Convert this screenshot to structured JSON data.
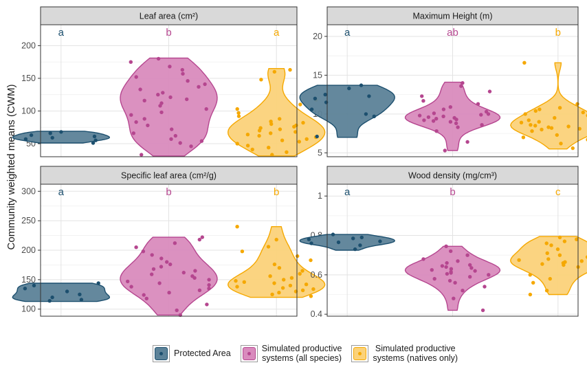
{
  "figure": {
    "ylabel": "Community weighted means (CWM)"
  },
  "legend": [
    {
      "label": "Protected Area",
      "color": "#1c4f6e",
      "fill": "#5c8298"
    },
    {
      "label": "Simulated productive\nsystems (all species)",
      "color": "#b5468f",
      "fill": "#d98bbd"
    },
    {
      "label": "Simulated productive\nsystems (natives only)",
      "color": "#f5a800",
      "fill": "#fbd27a"
    }
  ],
  "chart_data": [
    {
      "type": "violin",
      "title": "Leaf area (cm²)",
      "ylim": [
        30,
        232
      ],
      "yticks": [
        50,
        100,
        150,
        200
      ],
      "groups": [
        {
          "letter": "a",
          "min": 51,
          "max": 69,
          "points": [
            51,
            55,
            57,
            59,
            61,
            63,
            66,
            68
          ]
        },
        {
          "letter": "b",
          "min": 31,
          "max": 181,
          "points": [
            33,
            46,
            51,
            54,
            57,
            62,
            66,
            72,
            78,
            83,
            88,
            94,
            98,
            103,
            108,
            112,
            116,
            118,
            121,
            125,
            128,
            133,
            137,
            141,
            146,
            152,
            157,
            163,
            168,
            175,
            180
          ]
        },
        {
          "letter": "a",
          "min": 31,
          "max": 165,
          "points": [
            33,
            37,
            41,
            44,
            47,
            50,
            53,
            55,
            57,
            60,
            62,
            64,
            66,
            68,
            70,
            72,
            74,
            76,
            78,
            80,
            82,
            84,
            88,
            92,
            97,
            103,
            110,
            117,
            148,
            160,
            163
          ]
        }
      ]
    },
    {
      "type": "violin",
      "title": "Maximum Height (m)",
      "ylim": [
        4.5,
        21.5
      ],
      "yticks": [
        5,
        10,
        15,
        20
      ],
      "groups": [
        {
          "letter": "a",
          "min": 7.0,
          "max": 13.7,
          "points": [
            7.1,
            9.7,
            10.0,
            10.6,
            11.5,
            12.0,
            12.3,
            12.5,
            13.3,
            13.7
          ]
        },
        {
          "letter": "ab",
          "min": 5.3,
          "max": 14.1,
          "points": [
            5.3,
            6.4,
            7.8,
            8.3,
            8.6,
            8.8,
            9.0,
            9.1,
            9.2,
            9.3,
            9.4,
            9.5,
            9.6,
            9.7,
            9.8,
            9.9,
            10.0,
            10.1,
            10.3,
            10.6,
            10.9,
            11.3,
            11.7,
            12.3,
            12.9,
            13.6,
            14.0
          ]
        },
        {
          "letter": "b",
          "min": 5.5,
          "max": 16.6,
          "points": [
            5.6,
            6.2,
            6.7,
            7.0,
            7.3,
            7.6,
            7.8,
            8.0,
            8.1,
            8.2,
            8.3,
            8.4,
            8.5,
            8.6,
            8.7,
            8.8,
            8.9,
            9.0,
            9.2,
            9.5,
            9.8,
            10.0,
            10.2,
            10.4,
            10.6,
            10.8,
            11.3,
            16.6
          ]
        }
      ]
    },
    {
      "type": "violin",
      "title": "Specific leaf area (cm²/g)",
      "ylim": [
        88,
        312
      ],
      "yticks": [
        100,
        150,
        200,
        250,
        300
      ],
      "groups": [
        {
          "letter": "a",
          "min": 113,
          "max": 144,
          "points": [
            114,
            116,
            120,
            125,
            130,
            135,
            140,
            144
          ]
        },
        {
          "letter": "b",
          "min": 90,
          "max": 222,
          "points": [
            90,
            98,
            108,
            118,
            124,
            128,
            132,
            135,
            138,
            141,
            144,
            147,
            150,
            153,
            156,
            159,
            162,
            165,
            168,
            172,
            176,
            180,
            186,
            192,
            198,
            205,
            212,
            218,
            222
          ]
        },
        {
          "letter": "b",
          "min": 120,
          "max": 240,
          "points": [
            122,
            125,
            128,
            130,
            132,
            134,
            136,
            138,
            140,
            142,
            144,
            146,
            148,
            150,
            153,
            156,
            160,
            165,
            170,
            176,
            183,
            190,
            198,
            206,
            218,
            240
          ]
        }
      ]
    },
    {
      "type": "violin",
      "title": "Wood density (mg/cm³)",
      "ylim": [
        0.39,
        1.06
      ],
      "yticks": [
        0.4,
        0.6,
        0.8,
        1.0
      ],
      "groups": [
        {
          "letter": "a",
          "min": 0.725,
          "max": 0.805,
          "points": [
            0.73,
            0.75,
            0.76,
            0.765,
            0.77,
            0.78,
            0.785,
            0.79,
            0.805
          ]
        },
        {
          "letter": "b",
          "min": 0.42,
          "max": 0.745,
          "points": [
            0.42,
            0.48,
            0.52,
            0.54,
            0.56,
            0.57,
            0.58,
            0.59,
            0.6,
            0.605,
            0.61,
            0.615,
            0.62,
            0.625,
            0.63,
            0.635,
            0.64,
            0.645,
            0.65,
            0.66,
            0.67,
            0.68,
            0.7,
            0.72,
            0.745
          ]
        },
        {
          "letter": "c",
          "min": 0.5,
          "max": 0.795,
          "points": [
            0.5,
            0.52,
            0.56,
            0.58,
            0.6,
            0.62,
            0.63,
            0.64,
            0.65,
            0.655,
            0.66,
            0.665,
            0.67,
            0.675,
            0.68,
            0.69,
            0.7,
            0.71,
            0.72,
            0.73,
            0.74,
            0.75,
            0.76,
            0.77,
            0.78,
            0.79
          ]
        }
      ]
    }
  ]
}
